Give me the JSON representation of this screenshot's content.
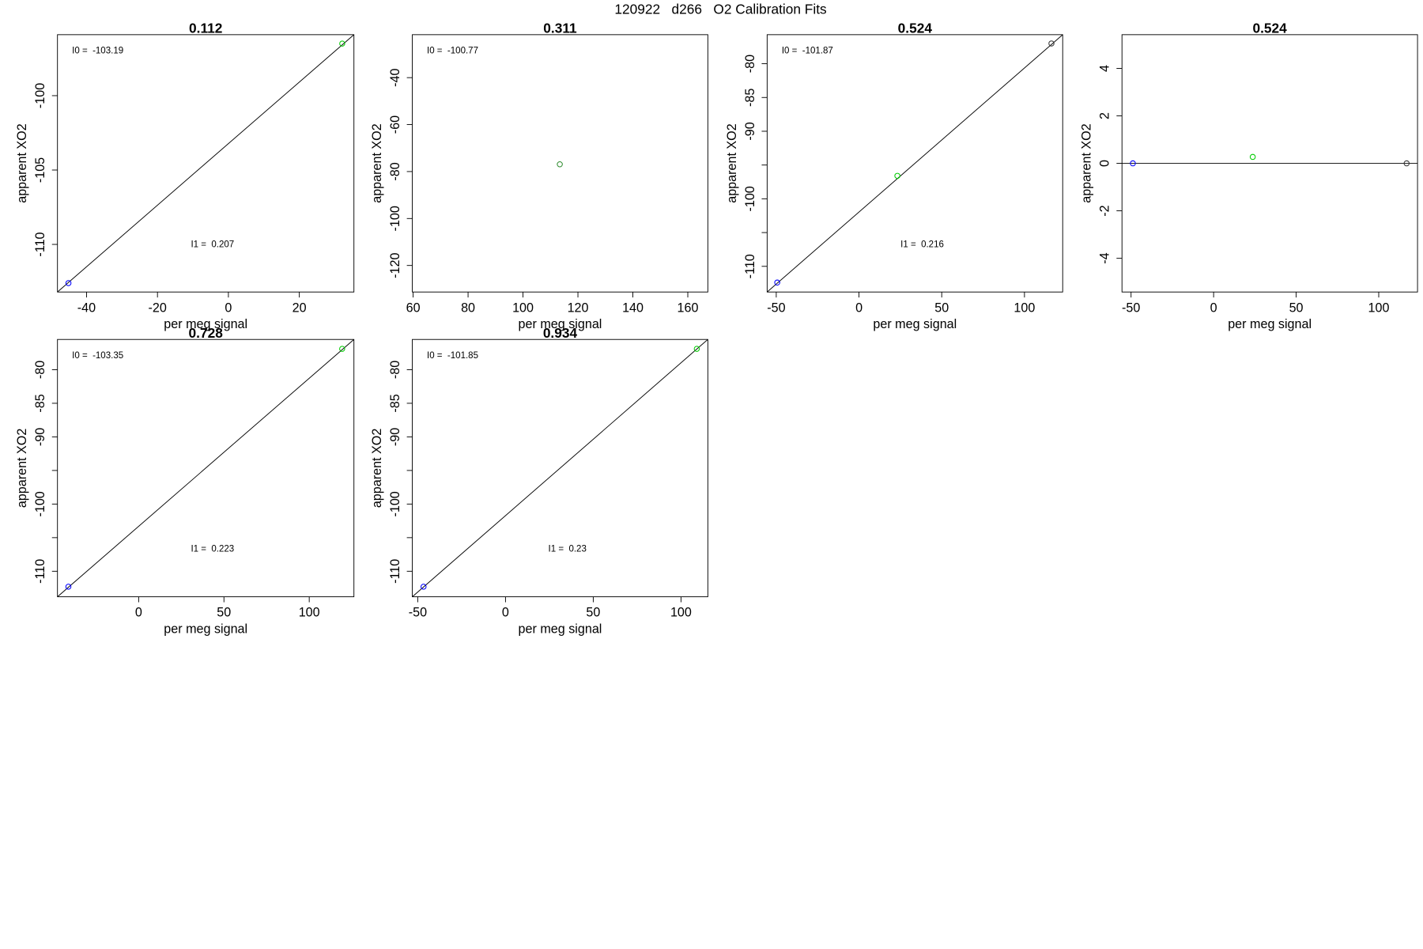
{
  "title": "120922   d266   O2 Calibration Fits",
  "chart_data": [
    {
      "type": "scatter",
      "title": "0.112",
      "xlabel": "per meg signal",
      "ylabel": "apparent XO2",
      "annotations": [
        "I0 =  -103.19",
        "I1 =  0.207"
      ],
      "x": [
        -45.1,
        32.1
      ],
      "y": [
        -112.6,
        -96.5
      ],
      "point_colors": [
        "#0000ff",
        "#00cc00"
      ],
      "fit_line": {
        "x": [
          -48.2,
          35.4
        ],
        "y": [
          -113.2,
          -95.9
        ]
      },
      "xlim": [
        -48.2,
        35.4
      ],
      "ylim": [
        -113.2,
        -95.9
      ],
      "xticks": [
        -40,
        -20,
        0,
        20
      ],
      "yticks": [
        -100,
        -105,
        -110
      ]
    },
    {
      "type": "scatter",
      "title": "0.311",
      "xlabel": "per meg signal",
      "ylabel": "apparent XO2",
      "annotations": [
        "I0 =  -100.77"
      ],
      "x": [
        113.4
      ],
      "y": [
        -76.9
      ],
      "point_colors": [
        "#2e8b2e"
      ],
      "xlim": [
        59.7,
        167.3
      ],
      "ylim": [
        -131.3,
        -21.7
      ],
      "xticks": [
        60,
        80,
        100,
        120,
        140,
        160
      ],
      "yticks": [
        -40,
        -60,
        -80,
        -100,
        -120
      ]
    },
    {
      "type": "scatter",
      "title": "0.524",
      "xlabel": "per meg signal",
      "ylabel": "apparent XO2",
      "annotations": [
        "I0 =  -101.87",
        "I1 =  0.216"
      ],
      "x": [
        -49.4,
        23.2,
        116.3
      ],
      "y": [
        -112.4,
        -96.6,
        -77.0
      ],
      "point_colors": [
        "#0000ff",
        "#00cc00",
        "#333333"
      ],
      "fit_line": {
        "x": [
          -55.5,
          123.1
        ],
        "y": [
          -113.8,
          -75.7
        ]
      },
      "xlim": [
        -55.5,
        123.1
      ],
      "ylim": [
        -113.8,
        -75.7
      ],
      "xticks": [
        -50,
        0,
        50,
        100
      ],
      "yticks": [
        -80,
        -85,
        -90,
        -100,
        -110
      ],
      "yticks_unlabeled": [
        -95,
        -105
      ]
    },
    {
      "type": "scatter",
      "title": "0.524",
      "xlabel": "per meg signal",
      "ylabel": "apparent XO2",
      "x": [
        -48.9,
        23.7,
        116.9
      ],
      "y": [
        0,
        0.27,
        0
      ],
      "point_colors": [
        "#0000ff",
        "#00cc00",
        "#333333"
      ],
      "fit_line": {
        "x": [
          -55.5,
          123.5
        ],
        "y": [
          0,
          0
        ]
      },
      "xlim": [
        -55.5,
        123.5
      ],
      "ylim": [
        -5.42,
        5.42
      ],
      "xticks": [
        -50,
        0,
        50,
        100
      ],
      "yticks": [
        4,
        2,
        0,
        -2,
        -4
      ]
    },
    {
      "type": "scatter",
      "title": "0.728",
      "xlabel": "per meg signal",
      "ylabel": "apparent XO2",
      "annotations": [
        "I0 =  -103.35",
        "I1 =  0.223"
      ],
      "x": [
        -41.2,
        119.3
      ],
      "y": [
        -112.3,
        -76.9
      ],
      "point_colors": [
        "#0000ff",
        "#00cc00"
      ],
      "fit_line": {
        "x": [
          -47.6,
          126.2
        ],
        "y": [
          -113.8,
          -75.5
        ]
      },
      "xlim": [
        -47.6,
        126.2
      ],
      "ylim": [
        -113.8,
        -75.5
      ],
      "xticks": [
        0,
        50,
        100
      ],
      "yticks": [
        -80,
        -85,
        -90,
        -100,
        -110
      ],
      "yticks_unlabeled": [
        -95,
        -105
      ]
    },
    {
      "type": "scatter",
      "title": "0.934",
      "xlabel": "per meg signal",
      "ylabel": "apparent XO2",
      "annotations": [
        "I0 =  -101.85",
        "I1 =  0.23"
      ],
      "x": [
        -46.7,
        109.0
      ],
      "y": [
        -112.3,
        -76.9
      ],
      "point_colors": [
        "#0000ff",
        "#00cc00"
      ],
      "fit_line": {
        "x": [
          -53.1,
          115.3
        ],
        "y": [
          -113.8,
          -75.5
        ]
      },
      "xlim": [
        -53.1,
        115.3
      ],
      "ylim": [
        -113.8,
        -75.5
      ],
      "xticks": [
        -50,
        0,
        50,
        100
      ],
      "yticks": [
        -80,
        -85,
        -90,
        -100,
        -110
      ],
      "yticks_unlabeled": [
        -95,
        -105
      ]
    }
  ]
}
